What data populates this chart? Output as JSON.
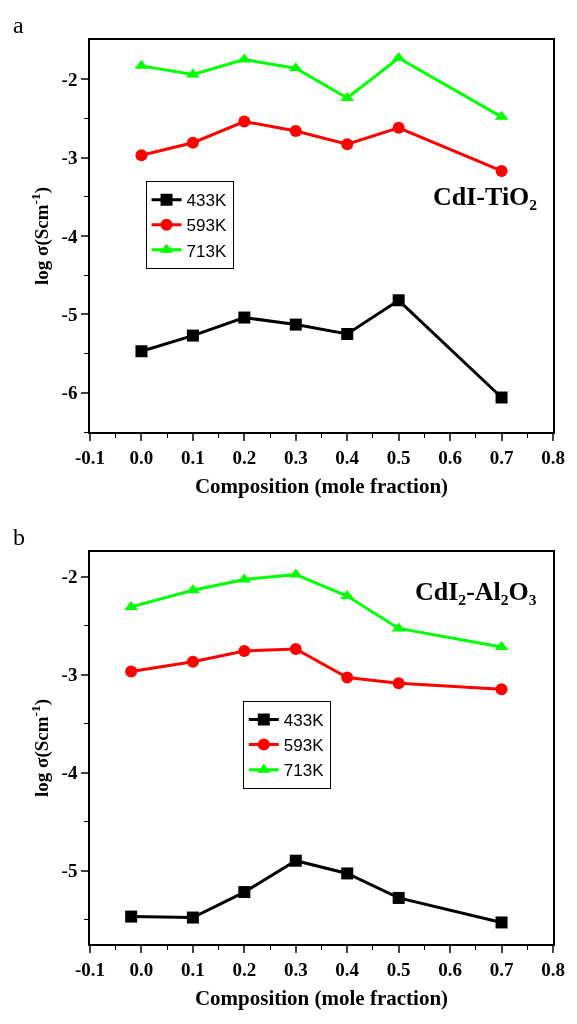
{
  "chart_data": [
    {
      "type": "line",
      "annotations": [
        "a",
        "CdI-TiO₂"
      ],
      "xlabel": "Composition (mole fraction)",
      "ylabel": "log σ(Scm$^{-1}$)",
      "legend": "left",
      "line_style": "solid",
      "grid": false,
      "xlim": [
        -0.1,
        0.8
      ],
      "xticks": [
        {
          "value": -0.1,
          "label": "-0.1"
        },
        {
          "value": -0.05,
          "label": null
        },
        {
          "value": 0,
          "label": "0.0"
        },
        {
          "value": 0.05,
          "label": null
        },
        {
          "value": 0.1,
          "label": "0.1"
        },
        {
          "value": 0.15,
          "label": null
        },
        {
          "value": 0.2,
          "label": "0.2"
        },
        {
          "value": 0.25,
          "label": null
        },
        {
          "value": 0.3,
          "label": "0.3"
        },
        {
          "value": 0.35,
          "label": null
        },
        {
          "value": 0.4,
          "label": "0.4"
        },
        {
          "value": 0.45,
          "label": null
        },
        {
          "value": 0.5,
          "label": "0.5"
        },
        {
          "value": 0.55,
          "label": null
        },
        {
          "value": 0.6,
          "label": "0.6"
        },
        {
          "value": 0.65,
          "label": null
        },
        {
          "value": 0.7,
          "label": "0.7"
        },
        {
          "value": 0.75,
          "label": null
        },
        {
          "value": 0.8,
          "label": "0.8"
        }
      ],
      "ylim": [
        -6.5,
        -1.5
      ],
      "yticks": [
        {
          "value": -6.5,
          "label": null
        },
        -6,
        {
          "value": -5.5,
          "label": null
        },
        -5,
        {
          "value": -4.5,
          "label": null
        },
        -4,
        {
          "value": -3.5,
          "label": null
        },
        -3,
        {
          "value": -2.5,
          "label": null
        },
        -2
      ],
      "x": [
        0,
        0.1,
        0.2,
        0.3,
        0.4,
        0.5,
        0.7
      ],
      "series": [
        {
          "name": "433K",
          "color": "#000000",
          "marker": "square",
          "values": [
            -5.47,
            -5.27,
            -5.04,
            -5.13,
            -5.25,
            -4.82,
            -6.06
          ]
        },
        {
          "name": "593K",
          "color": "#ff0000",
          "marker": "circle",
          "values": [
            -2.97,
            -2.81,
            -2.54,
            -2.66,
            -2.83,
            -2.62,
            -3.17
          ]
        },
        {
          "name": "713K",
          "color": "#00ff00",
          "marker": "triangle",
          "values": [
            -1.83,
            -1.94,
            -1.75,
            -1.86,
            -2.24,
            -1.73,
            -2.48
          ]
        }
      ]
    },
    {
      "type": "line",
      "annotations": [
        "b",
        "CdI₂-Al₂O₃"
      ],
      "xlabel": "Composition (mole fraction)",
      "ylabel": "log σ(Scm$^{-1}$)",
      "legend": "center",
      "line_style": "solid",
      "grid": false,
      "xlim": [
        -0.1,
        0.8
      ],
      "xticks": [
        {
          "value": -0.1,
          "label": "-0.1"
        },
        {
          "value": -0.05,
          "label": null
        },
        {
          "value": 0,
          "label": "0.0"
        },
        {
          "value": 0.05,
          "label": null
        },
        {
          "value": 0.1,
          "label": "0.1"
        },
        {
          "value": 0.15,
          "label": null
        },
        {
          "value": 0.2,
          "label": "0.2"
        },
        {
          "value": 0.25,
          "label": null
        },
        {
          "value": 0.3,
          "label": "0.3"
        },
        {
          "value": 0.35,
          "label": null
        },
        {
          "value": 0.4,
          "label": "0.4"
        },
        {
          "value": 0.45,
          "label": null
        },
        {
          "value": 0.5,
          "label": "0.5"
        },
        {
          "value": 0.55,
          "label": null
        },
        {
          "value": 0.6,
          "label": "0.6"
        },
        {
          "value": 0.65,
          "label": null
        },
        {
          "value": 0.7,
          "label": "0.7"
        },
        {
          "value": 0.75,
          "label": null
        },
        {
          "value": 0.8,
          "label": "0.8"
        }
      ],
      "ylim": [
        -5.75,
        -1.75
      ],
      "yticks": [
        {
          "value": -5.5,
          "label": null
        },
        -5,
        {
          "value": -4.5,
          "label": null
        },
        -4,
        {
          "value": -3.5,
          "label": null
        },
        -3,
        {
          "value": -2.5,
          "label": null
        },
        -2
      ],
      "x": [
        -0.02,
        0.1,
        0.2,
        0.3,
        0.4,
        0.5,
        0.7
      ],
      "series": [
        {
          "name": "433K",
          "color": "#000000",
          "marker": "square",
          "values": [
            -5.47,
            -5.48,
            -5.22,
            -4.9,
            -5.03,
            -5.28,
            -5.53
          ]
        },
        {
          "name": "593K",
          "color": "#ff0000",
          "marker": "circle",
          "values": [
            -2.97,
            -2.87,
            -2.76,
            -2.74,
            -3.03,
            -3.09,
            -3.15
          ]
        },
        {
          "name": "713K",
          "color": "#00ff00",
          "marker": "triangle",
          "values": [
            -2.31,
            -2.14,
            -2.03,
            -1.98,
            -2.2,
            -2.53,
            -2.72
          ]
        }
      ]
    }
  ]
}
